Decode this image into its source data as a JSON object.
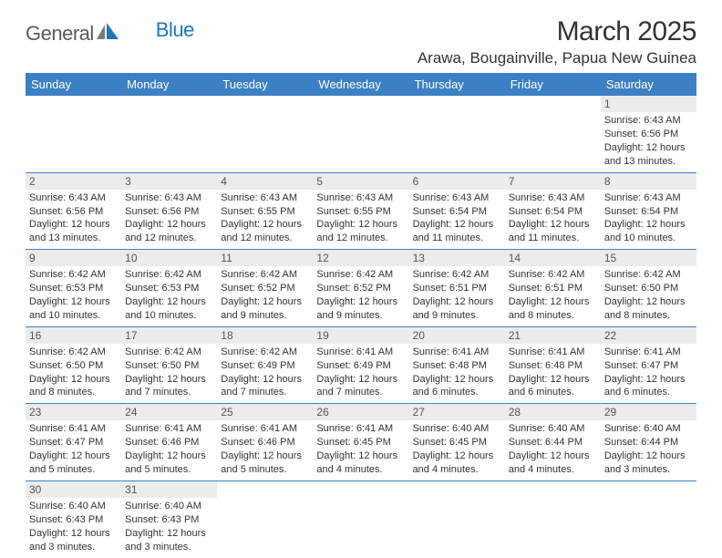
{
  "logo": {
    "word1": "General",
    "word2": "Blue"
  },
  "title": "March 2025",
  "location": "Arawa, Bougainville, Papua New Guinea",
  "colors": {
    "header_bg": "#3b80c2",
    "header_text": "#ffffff",
    "cell_rule": "#3b80c2",
    "daynum_bg": "#ececec",
    "body_text": "#333333",
    "logo_grey": "#5a5a5a",
    "logo_blue": "#2176b8"
  },
  "typography": {
    "title_fontsize": 30,
    "location_fontsize": 17,
    "header_fontsize": 13,
    "cell_fontsize": 11,
    "logo_fontsize": 22
  },
  "days_of_week": [
    "Sunday",
    "Monday",
    "Tuesday",
    "Wednesday",
    "Thursday",
    "Friday",
    "Saturday"
  ],
  "weeks": [
    [
      null,
      null,
      null,
      null,
      null,
      null,
      {
        "n": "1",
        "sunrise": "Sunrise: 6:43 AM",
        "sunset": "Sunset: 6:56 PM",
        "daylight1": "Daylight: 12 hours",
        "daylight2": "and 13 minutes."
      }
    ],
    [
      {
        "n": "2",
        "sunrise": "Sunrise: 6:43 AM",
        "sunset": "Sunset: 6:56 PM",
        "daylight1": "Daylight: 12 hours",
        "daylight2": "and 13 minutes."
      },
      {
        "n": "3",
        "sunrise": "Sunrise: 6:43 AM",
        "sunset": "Sunset: 6:56 PM",
        "daylight1": "Daylight: 12 hours",
        "daylight2": "and 12 minutes."
      },
      {
        "n": "4",
        "sunrise": "Sunrise: 6:43 AM",
        "sunset": "Sunset: 6:55 PM",
        "daylight1": "Daylight: 12 hours",
        "daylight2": "and 12 minutes."
      },
      {
        "n": "5",
        "sunrise": "Sunrise: 6:43 AM",
        "sunset": "Sunset: 6:55 PM",
        "daylight1": "Daylight: 12 hours",
        "daylight2": "and 12 minutes."
      },
      {
        "n": "6",
        "sunrise": "Sunrise: 6:43 AM",
        "sunset": "Sunset: 6:54 PM",
        "daylight1": "Daylight: 12 hours",
        "daylight2": "and 11 minutes."
      },
      {
        "n": "7",
        "sunrise": "Sunrise: 6:43 AM",
        "sunset": "Sunset: 6:54 PM",
        "daylight1": "Daylight: 12 hours",
        "daylight2": "and 11 minutes."
      },
      {
        "n": "8",
        "sunrise": "Sunrise: 6:43 AM",
        "sunset": "Sunset: 6:54 PM",
        "daylight1": "Daylight: 12 hours",
        "daylight2": "and 10 minutes."
      }
    ],
    [
      {
        "n": "9",
        "sunrise": "Sunrise: 6:42 AM",
        "sunset": "Sunset: 6:53 PM",
        "daylight1": "Daylight: 12 hours",
        "daylight2": "and 10 minutes."
      },
      {
        "n": "10",
        "sunrise": "Sunrise: 6:42 AM",
        "sunset": "Sunset: 6:53 PM",
        "daylight1": "Daylight: 12 hours",
        "daylight2": "and 10 minutes."
      },
      {
        "n": "11",
        "sunrise": "Sunrise: 6:42 AM",
        "sunset": "Sunset: 6:52 PM",
        "daylight1": "Daylight: 12 hours",
        "daylight2": "and 9 minutes."
      },
      {
        "n": "12",
        "sunrise": "Sunrise: 6:42 AM",
        "sunset": "Sunset: 6:52 PM",
        "daylight1": "Daylight: 12 hours",
        "daylight2": "and 9 minutes."
      },
      {
        "n": "13",
        "sunrise": "Sunrise: 6:42 AM",
        "sunset": "Sunset: 6:51 PM",
        "daylight1": "Daylight: 12 hours",
        "daylight2": "and 9 minutes."
      },
      {
        "n": "14",
        "sunrise": "Sunrise: 6:42 AM",
        "sunset": "Sunset: 6:51 PM",
        "daylight1": "Daylight: 12 hours",
        "daylight2": "and 8 minutes."
      },
      {
        "n": "15",
        "sunrise": "Sunrise: 6:42 AM",
        "sunset": "Sunset: 6:50 PM",
        "daylight1": "Daylight: 12 hours",
        "daylight2": "and 8 minutes."
      }
    ],
    [
      {
        "n": "16",
        "sunrise": "Sunrise: 6:42 AM",
        "sunset": "Sunset: 6:50 PM",
        "daylight1": "Daylight: 12 hours",
        "daylight2": "and 8 minutes."
      },
      {
        "n": "17",
        "sunrise": "Sunrise: 6:42 AM",
        "sunset": "Sunset: 6:50 PM",
        "daylight1": "Daylight: 12 hours",
        "daylight2": "and 7 minutes."
      },
      {
        "n": "18",
        "sunrise": "Sunrise: 6:42 AM",
        "sunset": "Sunset: 6:49 PM",
        "daylight1": "Daylight: 12 hours",
        "daylight2": "and 7 minutes."
      },
      {
        "n": "19",
        "sunrise": "Sunrise: 6:41 AM",
        "sunset": "Sunset: 6:49 PM",
        "daylight1": "Daylight: 12 hours",
        "daylight2": "and 7 minutes."
      },
      {
        "n": "20",
        "sunrise": "Sunrise: 6:41 AM",
        "sunset": "Sunset: 6:48 PM",
        "daylight1": "Daylight: 12 hours",
        "daylight2": "and 6 minutes."
      },
      {
        "n": "21",
        "sunrise": "Sunrise: 6:41 AM",
        "sunset": "Sunset: 6:48 PM",
        "daylight1": "Daylight: 12 hours",
        "daylight2": "and 6 minutes."
      },
      {
        "n": "22",
        "sunrise": "Sunrise: 6:41 AM",
        "sunset": "Sunset: 6:47 PM",
        "daylight1": "Daylight: 12 hours",
        "daylight2": "and 6 minutes."
      }
    ],
    [
      {
        "n": "23",
        "sunrise": "Sunrise: 6:41 AM",
        "sunset": "Sunset: 6:47 PM",
        "daylight1": "Daylight: 12 hours",
        "daylight2": "and 5 minutes."
      },
      {
        "n": "24",
        "sunrise": "Sunrise: 6:41 AM",
        "sunset": "Sunset: 6:46 PM",
        "daylight1": "Daylight: 12 hours",
        "daylight2": "and 5 minutes."
      },
      {
        "n": "25",
        "sunrise": "Sunrise: 6:41 AM",
        "sunset": "Sunset: 6:46 PM",
        "daylight1": "Daylight: 12 hours",
        "daylight2": "and 5 minutes."
      },
      {
        "n": "26",
        "sunrise": "Sunrise: 6:41 AM",
        "sunset": "Sunset: 6:45 PM",
        "daylight1": "Daylight: 12 hours",
        "daylight2": "and 4 minutes."
      },
      {
        "n": "27",
        "sunrise": "Sunrise: 6:40 AM",
        "sunset": "Sunset: 6:45 PM",
        "daylight1": "Daylight: 12 hours",
        "daylight2": "and 4 minutes."
      },
      {
        "n": "28",
        "sunrise": "Sunrise: 6:40 AM",
        "sunset": "Sunset: 6:44 PM",
        "daylight1": "Daylight: 12 hours",
        "daylight2": "and 4 minutes."
      },
      {
        "n": "29",
        "sunrise": "Sunrise: 6:40 AM",
        "sunset": "Sunset: 6:44 PM",
        "daylight1": "Daylight: 12 hours",
        "daylight2": "and 3 minutes."
      }
    ],
    [
      {
        "n": "30",
        "sunrise": "Sunrise: 6:40 AM",
        "sunset": "Sunset: 6:43 PM",
        "daylight1": "Daylight: 12 hours",
        "daylight2": "and 3 minutes."
      },
      {
        "n": "31",
        "sunrise": "Sunrise: 6:40 AM",
        "sunset": "Sunset: 6:43 PM",
        "daylight1": "Daylight: 12 hours",
        "daylight2": "and 3 minutes."
      },
      null,
      null,
      null,
      null,
      null
    ]
  ]
}
